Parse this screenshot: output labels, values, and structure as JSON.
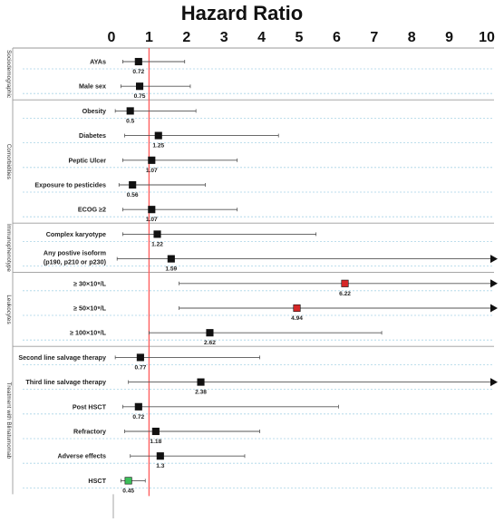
{
  "chart_data": {
    "type": "forest",
    "title": "Hazard Ratio",
    "xlim": [
      0,
      10
    ],
    "xticks": [
      0,
      1,
      2,
      3,
      4,
      5,
      6,
      7,
      8,
      9,
      10
    ],
    "reference_line": 1,
    "colors": {
      "reference": "#ff5a5a",
      "default_marker": "#111111",
      "high_marker": "#d62828",
      "protective_marker": "#3bbf5a",
      "whisker": "#555555",
      "row_line": "#a9d3e6",
      "separator": "#9a9a9a"
    },
    "groups": [
      {
        "name": "Sociodemographic",
        "rows": [
          0,
          1
        ]
      },
      {
        "name": "Comorbidities",
        "rows": [
          2,
          3,
          4,
          5,
          6
        ]
      },
      {
        "name": "Immunophenotype",
        "rows": [
          7,
          8
        ]
      },
      {
        "name": "Leukocytes",
        "rows": [
          9,
          10,
          11
        ]
      },
      {
        "name": "Treatment with Blinatumomab",
        "rows": [
          12,
          13,
          14,
          15,
          16,
          17
        ]
      }
    ],
    "rows": [
      {
        "label": "AYAs",
        "hr": 0.72,
        "hr_label": "0.72",
        "lo": 0.3,
        "hi": 1.95,
        "arrow": false,
        "marker": "default"
      },
      {
        "label": "Male sex",
        "hr": 0.75,
        "hr_label": "0.75",
        "lo": 0.25,
        "hi": 2.1,
        "arrow": false,
        "marker": "default"
      },
      {
        "label": "Obesity",
        "hr": 0.5,
        "hr_label": "0.5",
        "lo": 0.1,
        "hi": 2.25,
        "arrow": false,
        "marker": "default"
      },
      {
        "label": "Diabetes",
        "hr": 1.25,
        "hr_label": "1.25",
        "lo": 0.35,
        "hi": 4.45,
        "arrow": false,
        "marker": "default"
      },
      {
        "label": "Peptic Ulcer",
        "hr": 1.07,
        "hr_label": "1.07",
        "lo": 0.3,
        "hi": 3.35,
        "arrow": false,
        "marker": "default"
      },
      {
        "label": "Exposure to pesticides",
        "hr": 0.56,
        "hr_label": "0.56",
        "lo": 0.2,
        "hi": 2.5,
        "arrow": false,
        "marker": "default"
      },
      {
        "label": "ECOG ≥2",
        "hr": 1.07,
        "hr_label": "1.07",
        "lo": 0.3,
        "hi": 3.35,
        "arrow": false,
        "marker": "default"
      },
      {
        "label": "Complex karyotype",
        "hr": 1.22,
        "hr_label": "1.22",
        "lo": 0.3,
        "hi": 5.45,
        "arrow": false,
        "marker": "default"
      },
      {
        "label": [
          "Any postive isoform",
          "(p190, p210 or p230)"
        ],
        "hr": 1.59,
        "hr_label": "1.59",
        "lo": 0.15,
        "hi": 10,
        "arrow": true,
        "marker": "default"
      },
      {
        "label": "≥ 30×10⁹/L",
        "hr": 6.22,
        "hr_label": "6.22",
        "lo": 1.8,
        "hi": 10,
        "arrow": true,
        "marker": "high"
      },
      {
        "label": "≥ 50×10⁹/L",
        "hr": 4.94,
        "hr_label": "4.94",
        "lo": 1.8,
        "hi": 10,
        "arrow": true,
        "marker": "high"
      },
      {
        "label": "≥ 100×10⁹/L",
        "hr": 2.62,
        "hr_label": "2.62",
        "lo": 1.0,
        "hi": 7.2,
        "arrow": false,
        "marker": "default"
      },
      {
        "label": "Second line salvage therapy",
        "hr": 0.77,
        "hr_label": "0.77",
        "lo": 0.1,
        "hi": 3.95,
        "arrow": false,
        "marker": "default"
      },
      {
        "label": "Third line salvage therapy",
        "hr": 2.38,
        "hr_label": "2.38",
        "lo": 0.45,
        "hi": 10,
        "arrow": true,
        "marker": "default"
      },
      {
        "label": "Post HSCT",
        "hr": 0.72,
        "hr_label": "0.72",
        "lo": 0.3,
        "hi": 6.05,
        "arrow": false,
        "marker": "default"
      },
      {
        "label": "Refractory",
        "hr": 1.18,
        "hr_label": "1.18",
        "lo": 0.35,
        "hi": 3.95,
        "arrow": false,
        "marker": "default"
      },
      {
        "label": "Adverse effects",
        "hr": 1.3,
        "hr_label": "1.3",
        "lo": 0.5,
        "hi": 3.55,
        "arrow": false,
        "marker": "default"
      },
      {
        "label": "HSCT",
        "hr": 0.45,
        "hr_label": "0.45",
        "lo": 0.25,
        "hi": 0.9,
        "arrow": false,
        "marker": "protective"
      }
    ]
  }
}
